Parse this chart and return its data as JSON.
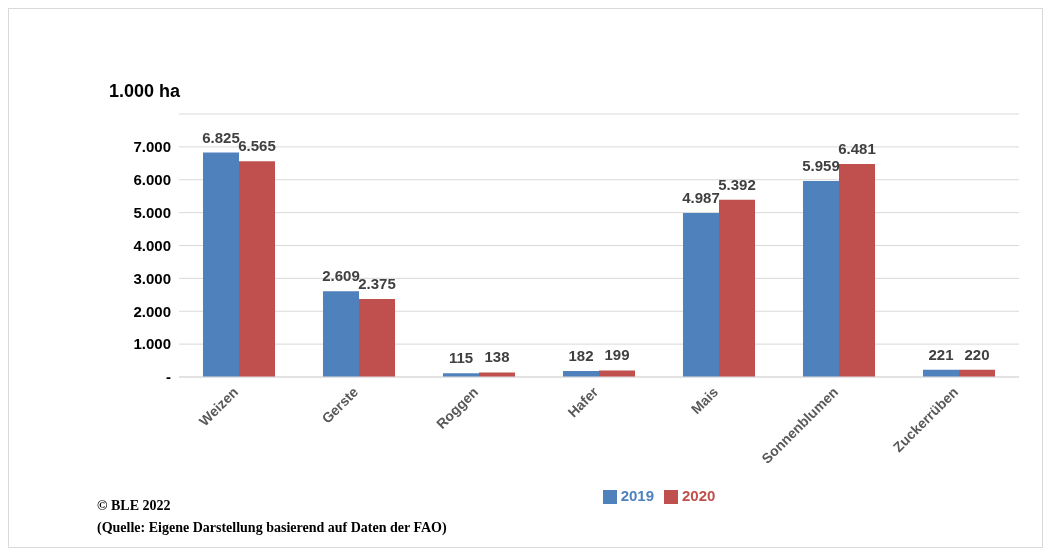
{
  "chart_data": {
    "type": "bar",
    "ylabel": "1.000 ha",
    "categories": [
      "Weizen",
      "Gerste",
      "Roggen",
      "Hafer",
      "Mais",
      "Sonnenblumen",
      "Zuckerrüben"
    ],
    "series": [
      {
        "name": "2019",
        "color": "#4f81bd",
        "values": [
          6825,
          2609,
          115,
          182,
          4987,
          5959,
          221
        ],
        "value_labels": [
          "6.825",
          "2.609",
          "115",
          "182",
          "4.987",
          "5.959",
          "221"
        ]
      },
      {
        "name": "2020",
        "color": "#c0504d",
        "values": [
          6565,
          2375,
          138,
          199,
          5392,
          6481,
          220
        ],
        "value_labels": [
          "6.565",
          "2.375",
          "138",
          "199",
          "5.392",
          "6.481",
          "220"
        ]
      }
    ],
    "ylim": [
      0,
      8000
    ],
    "yticks": [
      {
        "value": 0,
        "label": "-"
      },
      {
        "value": 1000,
        "label": "1.000"
      },
      {
        "value": 2000,
        "label": "2.000"
      },
      {
        "value": 3000,
        "label": "3.000"
      },
      {
        "value": 4000,
        "label": "4.000"
      },
      {
        "value": 5000,
        "label": "5.000"
      },
      {
        "value": 6000,
        "label": "6.000"
      },
      {
        "value": 7000,
        "label": "7.000"
      },
      {
        "value": 8000,
        "label": null
      }
    ],
    "grid": "y",
    "legend": "bottom",
    "annotations": [
      "© BLE  2022",
      "(Quelle: Eigene Darstellung basierend auf Daten der FAO)"
    ]
  }
}
